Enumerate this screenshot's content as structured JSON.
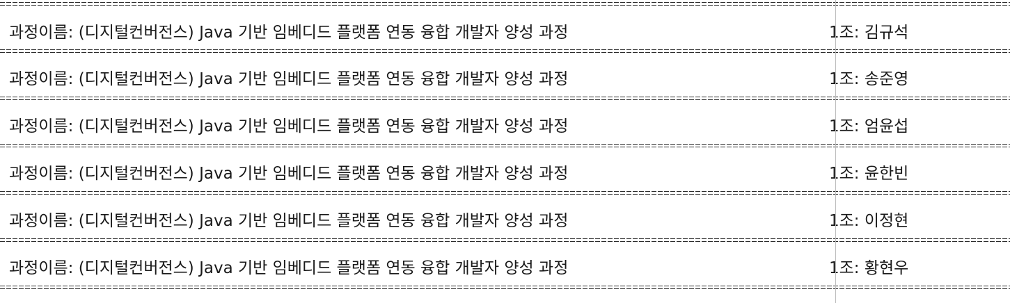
{
  "separator_text": "===============================================================================================================================================================================",
  "course_prefix": "과정이름: (디지털컨버전스) Java 기반 임베디드 플랫폼 연동 융합 개발자 양성 과정",
  "rows": [
    {
      "team_label": "1조: ",
      "name": "김규석"
    },
    {
      "team_label": "1조: ",
      "name": "송준영"
    },
    {
      "team_label": "1조: ",
      "name": "엄윤섭"
    },
    {
      "team_label": "1조: ",
      "name": "윤한빈"
    },
    {
      "team_label": "1조: ",
      "name": "이정현"
    },
    {
      "team_label": "1조: ",
      "name": "황현우"
    }
  ]
}
